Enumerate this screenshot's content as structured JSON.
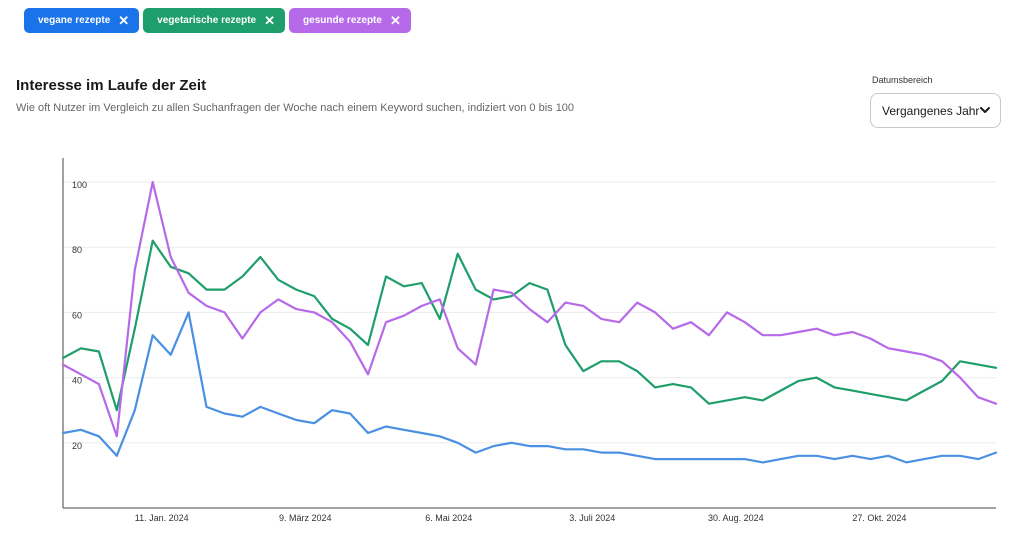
{
  "chips": [
    {
      "label": "vegane rezepte",
      "color": "#1a73e8"
    },
    {
      "label": "vegetarische rezepte",
      "color": "#1e9e6a"
    },
    {
      "label": "gesunde rezepte",
      "color": "#b66ae9"
    }
  ],
  "header": {
    "title": "Interesse im Laufe der Zeit",
    "subtitle": "Wie oft Nutzer im Vergleich zu allen Suchanfragen der Woche nach einem Keyword suchen, indiziert von 0 bis 100"
  },
  "date_range": {
    "label": "Datumsbereich",
    "value": "Vergangenes Jahr"
  },
  "chart_data": {
    "type": "line",
    "xlabel": "",
    "ylabel": "",
    "ylim": [
      0,
      100
    ],
    "yticks": [
      20,
      40,
      60,
      80,
      100
    ],
    "x_tick_labels": [
      "11. Jan. 2024",
      "9. März 2024",
      "6. Mai 2024",
      "3. Juli 2024",
      "30. Aug. 2024",
      "27. Okt. 2024"
    ],
    "x_tick_indices": [
      5.5,
      13.5,
      21.5,
      29.5,
      37.5,
      45.5
    ],
    "grid": true,
    "legend": "none",
    "series": [
      {
        "name": "vegane rezepte",
        "color": "#4a90e2",
        "values": [
          23,
          24,
          22,
          16,
          30,
          53,
          47,
          60,
          31,
          29,
          28,
          31,
          29,
          27,
          26,
          30,
          29,
          23,
          25,
          24,
          23,
          22,
          20,
          17,
          19,
          20,
          19,
          19,
          18,
          18,
          17,
          17,
          16,
          15,
          15,
          15,
          15,
          15,
          15,
          14,
          15,
          16,
          16,
          15,
          16,
          15,
          16,
          14,
          15,
          16,
          16,
          15,
          17
        ]
      },
      {
        "name": "vegetarische rezepte",
        "color": "#1e9e6a",
        "values": [
          46,
          49,
          48,
          30,
          55,
          82,
          74,
          72,
          67,
          67,
          71,
          77,
          70,
          67,
          65,
          58,
          55,
          50,
          71,
          68,
          69,
          58,
          78,
          67,
          64,
          65,
          69,
          67,
          50,
          42,
          45,
          45,
          42,
          37,
          38,
          37,
          32,
          33,
          34,
          33,
          36,
          39,
          40,
          37,
          36,
          35,
          34,
          33,
          36,
          39,
          45,
          44,
          43
        ]
      },
      {
        "name": "gesunde rezepte",
        "color": "#b66ae9",
        "values": [
          44,
          41,
          38,
          22,
          73,
          100,
          77,
          66,
          62,
          60,
          52,
          60,
          64,
          61,
          60,
          57,
          51,
          41,
          57,
          59,
          62,
          64,
          49,
          44,
          67,
          66,
          61,
          57,
          63,
          62,
          58,
          57,
          63,
          60,
          55,
          57,
          53,
          60,
          57,
          53,
          53,
          54,
          55,
          53,
          54,
          52,
          49,
          48,
          47,
          45,
          40,
          34,
          32
        ]
      }
    ]
  }
}
